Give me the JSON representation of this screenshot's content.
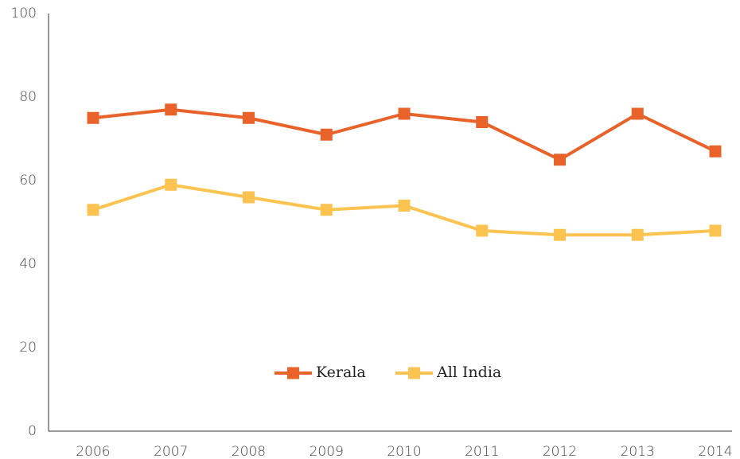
{
  "chart_data": {
    "type": "line",
    "categories": [
      "2006",
      "2007",
      "2008",
      "2009",
      "2010",
      "2011",
      "2012",
      "2013",
      "2014"
    ],
    "series": [
      {
        "name": "Kerala",
        "color": "#e8622a",
        "values": [
          75,
          77,
          75,
          71,
          76,
          74,
          65,
          76,
          67
        ]
      },
      {
        "name": "All India",
        "color": "#fdc350",
        "values": [
          53,
          59,
          56,
          53,
          54,
          48,
          47,
          47,
          48
        ]
      }
    ],
    "ylim": [
      0,
      100
    ],
    "yticks": [
      0,
      20,
      40,
      60,
      80,
      100
    ],
    "grid": false,
    "legend": "center"
  }
}
